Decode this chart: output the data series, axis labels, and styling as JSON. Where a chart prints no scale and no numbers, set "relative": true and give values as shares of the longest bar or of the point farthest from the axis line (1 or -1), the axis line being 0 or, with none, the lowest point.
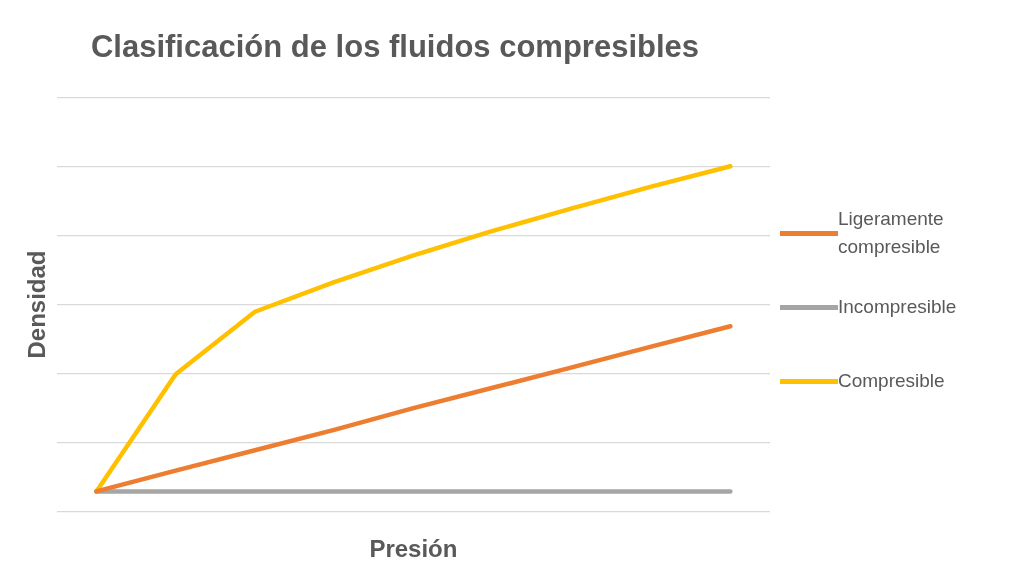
{
  "chart_data": {
    "type": "line",
    "title": "Clasificación de los fluidos compresibles",
    "xlabel": "Presión",
    "ylabel": "Densidad",
    "relative": true,
    "grid": "y",
    "legend": "right",
    "marker": "none",
    "line_style": "solid",
    "categories": [
      null,
      null,
      null,
      null,
      null,
      null,
      null,
      null,
      null
    ],
    "series": [
      {
        "name": "Ligeramente compresible",
        "color": "#ed7d31",
        "values": [
          0.059,
          0.119,
          0.178,
          0.237,
          0.3,
          0.359,
          0.418,
          0.478,
          0.537
        ]
      },
      {
        "name": "Incompresible",
        "color": "#a5a5a5",
        "values": [
          0.059,
          0.059,
          0.059,
          0.059,
          0.059,
          0.059,
          0.059,
          0.059,
          0.059
        ]
      },
      {
        "name": "Compresible",
        "color": "#ffc000",
        "values": [
          0.059,
          0.398,
          0.579,
          0.665,
          0.742,
          0.813,
          0.878,
          0.941,
          1
        ]
      }
    ]
  }
}
